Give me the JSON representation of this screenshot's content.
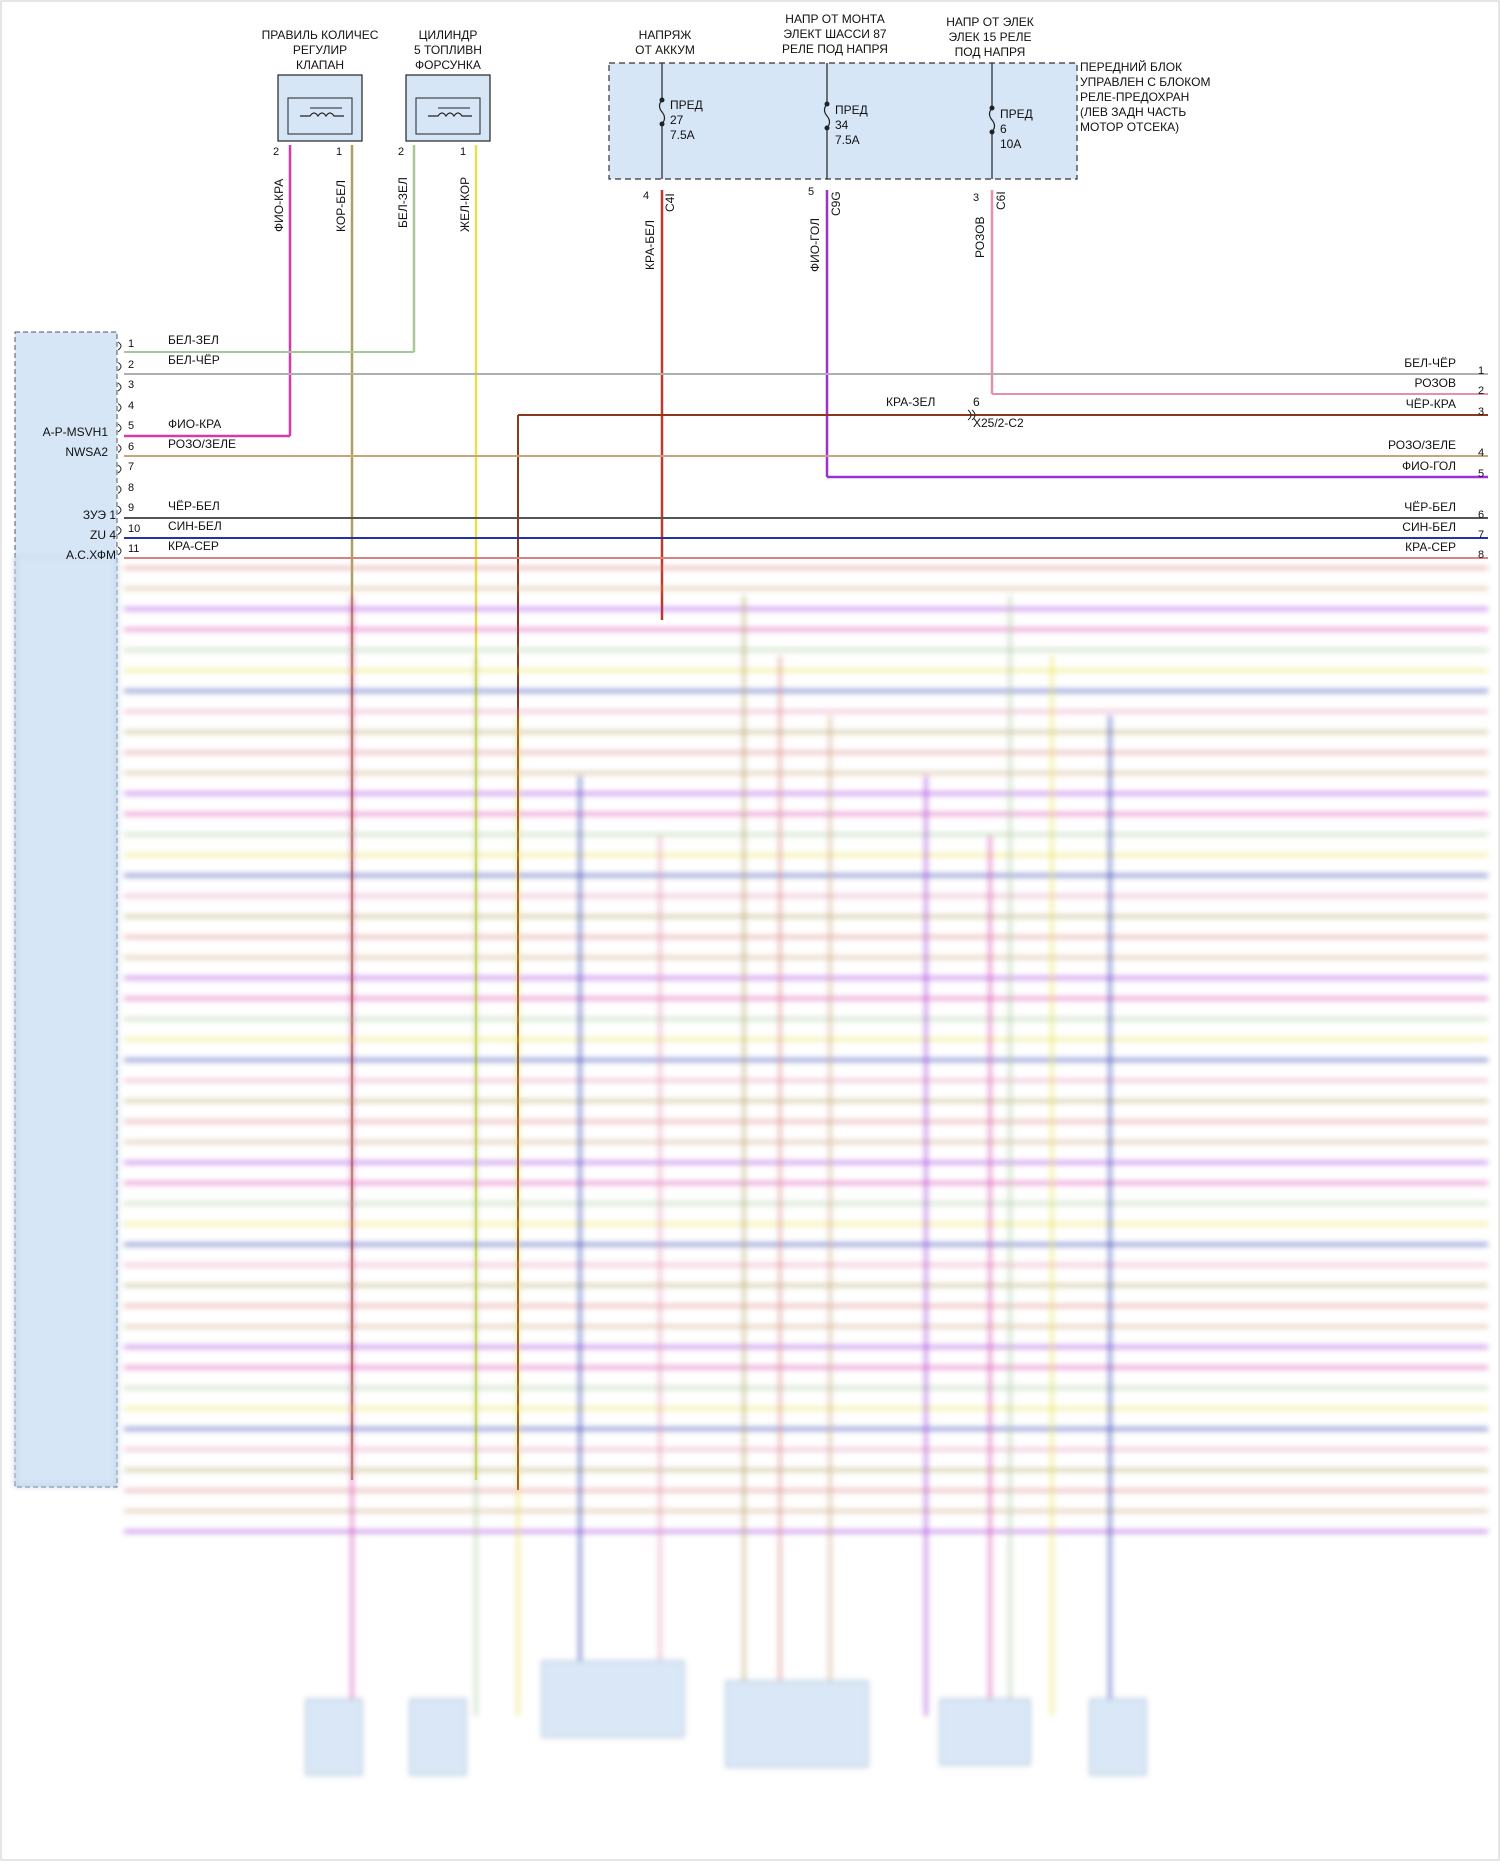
{
  "top_components": [
    {
      "id": "valve",
      "title": "ПРАВИЛЬ КОЛИЧЕС\nРЕГУЛИР\nКЛАПАН",
      "pins": [
        "2",
        "1"
      ],
      "wires": [
        "ФИО-КРА",
        "КОР-БЕЛ"
      ]
    },
    {
      "id": "injector",
      "title": "ЦИЛИНДР\n5 ТОПЛИВН\nФОРСУНКА",
      "pins": [
        "2",
        "1"
      ],
      "wires": [
        "БЕЛ-ЗЕЛ",
        "ЖЕЛ-КОР"
      ]
    }
  ],
  "power_sources": [
    {
      "title": "НАПРЯЖ\nОТ АККУМ",
      "fuse_label": "ПРЕД",
      "fuse_num": "27",
      "fuse_amp": "7.5A",
      "pin": "4",
      "connector": "C4I",
      "wire": "КРА-БЕЛ",
      "color": "#c0392b"
    },
    {
      "title": "НАПР ОТ МОНТА\nЭЛЕКТ ШАССИ 87\nРЕЛЕ ПОД НАПРЯ",
      "fuse_label": "ПРЕД",
      "fuse_num": "34",
      "fuse_amp": "7.5A",
      "pin": "5",
      "connector": "C9G",
      "wire": "ФИО-ГОЛ",
      "color": "#9b30d9"
    },
    {
      "title": "НАПР ОТ ЭЛЕК\nЭЛЕК 15 РЕЛЕ\nПОД НАПРЯ",
      "fuse_label": "ПРЕД",
      "fuse_num": "6",
      "fuse_amp": "10A",
      "pin": "3",
      "connector": "C6I",
      "wire": "РОЗОВ",
      "color": "#e58fb0"
    }
  ],
  "front_block_label": "ПЕРЕДНИЙ БЛОК\nУПРАВЛЕН С БЛОКОМ\nРЕЛЕ-ПРЕДОХРАН\n(ЛЕВ ЗАДН ЧАСТЬ\nМОТОР ОТСЕКА)",
  "ecu": {
    "side_labels": [
      {
        "pin": 5,
        "text": "A-P-MSVH1"
      },
      {
        "pin": 6,
        "text": "NWSA2"
      },
      {
        "pin": 9,
        "text": "ЗУЭ 1"
      },
      {
        "pin": 10,
        "text": "ZU 4"
      },
      {
        "pin": 11,
        "text": "A.C.ХФМ"
      }
    ],
    "pins": [
      "1",
      "2",
      "3",
      "4",
      "5",
      "6",
      "7",
      "8",
      "9",
      "10",
      "11"
    ],
    "wire_labels": [
      {
        "pin": 1,
        "text": "БЕЛ-ЗЕЛ"
      },
      {
        "pin": 2,
        "text": "БЕЛ-ЧЁР"
      },
      {
        "pin": 5,
        "text": "ФИО-КРА"
      },
      {
        "pin": 6,
        "text": "РОЗО/ЗЕЛЕ"
      },
      {
        "pin": 9,
        "text": "ЧЁР-БЕЛ"
      },
      {
        "pin": 10,
        "text": "СИН-БЕЛ"
      },
      {
        "pin": 11,
        "text": "КРА-СЕР"
      }
    ]
  },
  "right_outputs": [
    {
      "num": "1",
      "text": "БЕЛ-ЧЁР"
    },
    {
      "num": "2",
      "text": "РОЗОВ"
    },
    {
      "num": "3",
      "text": "ЧЁР-КРА"
    },
    {
      "num": "4",
      "text": "РОЗО/ЗЕЛЕ"
    },
    {
      "num": "5",
      "text": "ФИО-ГОЛ"
    },
    {
      "num": "6",
      "text": "ЧЁР-БЕЛ"
    },
    {
      "num": "7",
      "text": "СИН-БЕЛ"
    },
    {
      "num": "8",
      "text": "КРА-СЕР"
    }
  ],
  "splice": {
    "wire": "КРА-ЗЕЛ",
    "pin": "6",
    "connector": "X25/2-C2"
  },
  "colors": {
    "bel_zel": "#a8c89a",
    "bel_cher": "#b0b0b0",
    "fio_kra": "#d63aa8",
    "roz_zel": "#c9a37a",
    "cher_bel": "#555555",
    "sin_bel": "#2233aa",
    "kra_ser": "#d98080",
    "kor_bel": "#b0a060",
    "zhel_kor": "#e8e050",
    "kra_bel": "#c0392b",
    "fio_gol": "#9b30d9",
    "rozov": "#e58fb0",
    "cher_kra": "#7a3a2a",
    "kra_zel": "#8a3a1a",
    "block_fill": "#d6e6f7"
  }
}
